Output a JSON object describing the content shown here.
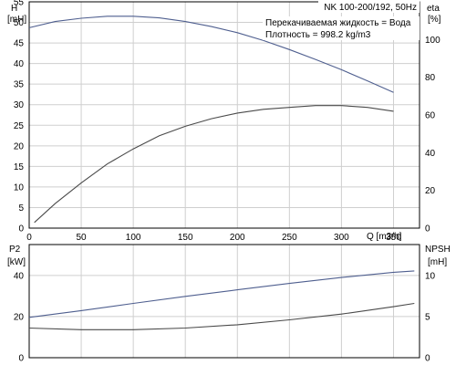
{
  "chart_data": [
    {
      "type": "line",
      "title": "NK 100-200/192, 50Hz",
      "annotations": [
        "Перекачиваемая жидкость = Вода",
        "Плотность = 998.2 kg/m3"
      ],
      "xlabel": "Q [m3/h]",
      "xlim": [
        0,
        375
      ],
      "x_ticks": [
        "0",
        "50",
        "100",
        "150",
        "200",
        "250",
        "300",
        "350"
      ],
      "y_left": {
        "label_top": "H",
        "label_bottom": "[mH]",
        "ylim": [
          0,
          55
        ],
        "ticks": [
          "0",
          "5",
          "10",
          "15",
          "20",
          "25",
          "30",
          "35",
          "40",
          "45",
          "50",
          "55"
        ]
      },
      "y_right": {
        "label_top": "eta",
        "label_bottom": "[%]",
        "ylim": [
          0,
          120
        ],
        "ticks": [
          "0",
          "20",
          "40",
          "60",
          "80",
          "100"
        ]
      },
      "grid": true,
      "series": [
        {
          "axis": "left",
          "color": "#4f5f8f",
          "points": [
            [
              0,
              48.7
            ],
            [
              25,
              50.2
            ],
            [
              50,
              51.0
            ],
            [
              75,
              51.5
            ],
            [
              100,
              51.5
            ],
            [
              125,
              51.1
            ],
            [
              150,
              50.2
            ],
            [
              175,
              49.0
            ],
            [
              200,
              47.5
            ],
            [
              225,
              45.6
            ],
            [
              250,
              43.4
            ],
            [
              275,
              41.0
            ],
            [
              300,
              38.5
            ],
            [
              325,
              35.8
            ],
            [
              350,
              33.0
            ]
          ]
        },
        {
          "axis": "right",
          "color": "#4a4a4a",
          "points": [
            [
              5,
              3
            ],
            [
              25,
              13
            ],
            [
              50,
              24
            ],
            [
              75,
              34
            ],
            [
              100,
              42
            ],
            [
              125,
              49
            ],
            [
              150,
              54
            ],
            [
              175,
              58
            ],
            [
              200,
              61
            ],
            [
              225,
              63
            ],
            [
              250,
              64
            ],
            [
              275,
              65
            ],
            [
              300,
              65
            ],
            [
              325,
              64
            ],
            [
              350,
              62
            ]
          ]
        }
      ]
    },
    {
      "type": "line",
      "xlim": [
        0,
        375
      ],
      "y_left": {
        "label_top": "P2",
        "label_bottom": "[kW]",
        "ylim": [
          0,
          55
        ],
        "ticks": [
          "0",
          "20",
          "40"
        ]
      },
      "y_right": {
        "label_top": "NPSH",
        "label_bottom": "[mH]",
        "ylim": [
          0,
          13.75
        ],
        "ticks": [
          "0",
          "5",
          "10"
        ]
      },
      "grid": true,
      "series": [
        {
          "axis": "left",
          "color": "#4f5f8f",
          "points": [
            [
              0,
              19.6
            ],
            [
              50,
              22.9
            ],
            [
              100,
              26.4
            ],
            [
              150,
              29.8
            ],
            [
              200,
              33.0
            ],
            [
              250,
              36.1
            ],
            [
              300,
              39.0
            ],
            [
              350,
              41.5
            ],
            [
              370,
              42.2
            ]
          ]
        },
        {
          "axis": "right",
          "color": "#4a4a4a",
          "points": [
            [
              0,
              3.6
            ],
            [
              50,
              3.4
            ],
            [
              100,
              3.4
            ],
            [
              150,
              3.6
            ],
            [
              200,
              4.0
            ],
            [
              250,
              4.6
            ],
            [
              300,
              5.3
            ],
            [
              350,
              6.2
            ],
            [
              370,
              6.6
            ]
          ]
        }
      ]
    }
  ]
}
